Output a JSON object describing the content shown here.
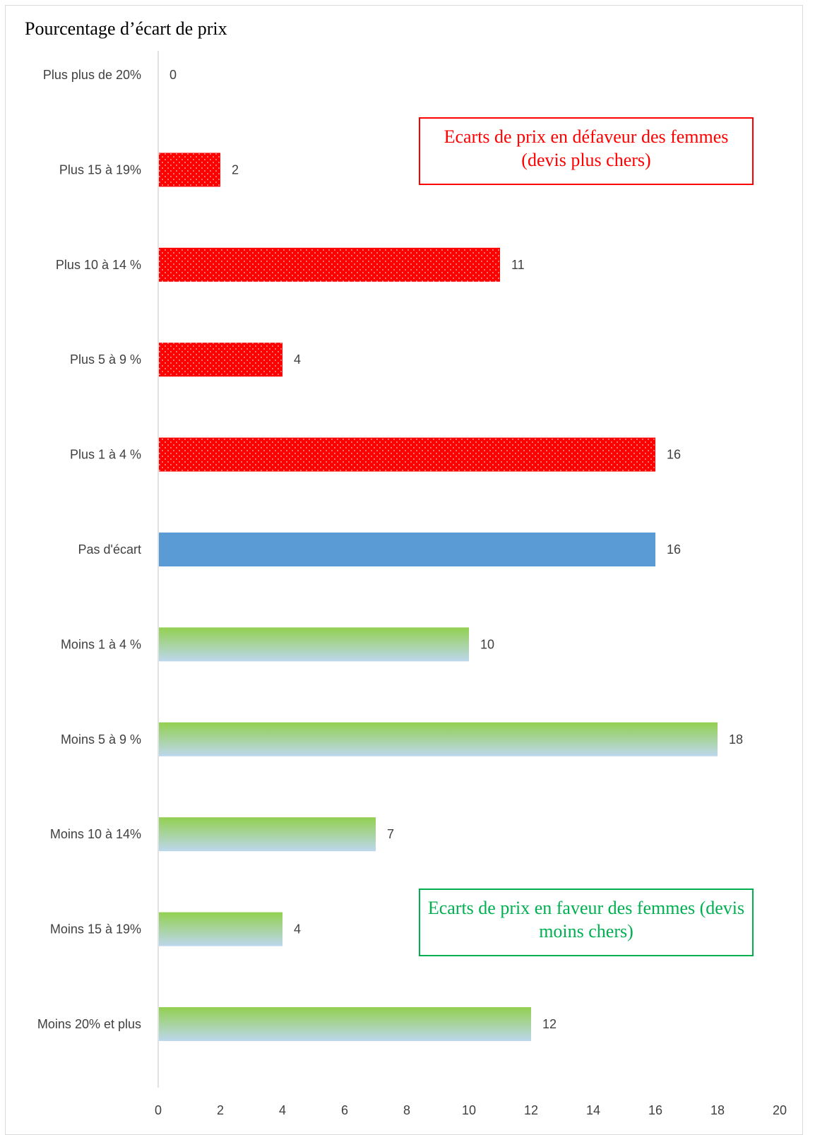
{
  "title": "Pourcentage d’écart de prix",
  "annotations": {
    "unfavorable": "Ecarts de prix en défaveur des femmes (devis plus chers)",
    "favorable": "Ecarts de prix en faveur des femmes (devis moins chers)"
  },
  "colors": {
    "unfavorable": "#ff0000",
    "neutral": "#5b9bd5",
    "favorable_top": "#92d050",
    "favorable_bottom": "#bdd7ee",
    "favorable_border": "#00b050",
    "axis_text": "#404040",
    "axis_line": "#d9d9d9"
  },
  "chart_data": {
    "type": "bar",
    "orientation": "horizontal",
    "categories": [
      "Plus plus de 20%",
      "Plus 15 à 19%",
      "Plus 10 à 14 %",
      "Plus 5 à 9 %",
      "Plus 1 à 4 %",
      "Pas d'écart",
      "Moins 1 à 4 %",
      "Moins 5 à 9 %",
      "Moins 10 à 14%",
      "Moins 15 à 19%",
      "Moins 20% et plus"
    ],
    "values": [
      0,
      2,
      11,
      4,
      16,
      16,
      10,
      18,
      7,
      4,
      12
    ],
    "bar_styles": [
      "unfavorable",
      "unfavorable",
      "unfavorable",
      "unfavorable",
      "unfavorable",
      "neutral",
      "favorable",
      "favorable",
      "favorable",
      "favorable",
      "favorable"
    ],
    "data_labels": true,
    "xlim": [
      0,
      20
    ],
    "xticks": [
      0,
      2,
      4,
      6,
      8,
      10,
      12,
      14,
      16,
      18,
      20
    ],
    "grid": false,
    "legend": "none"
  }
}
